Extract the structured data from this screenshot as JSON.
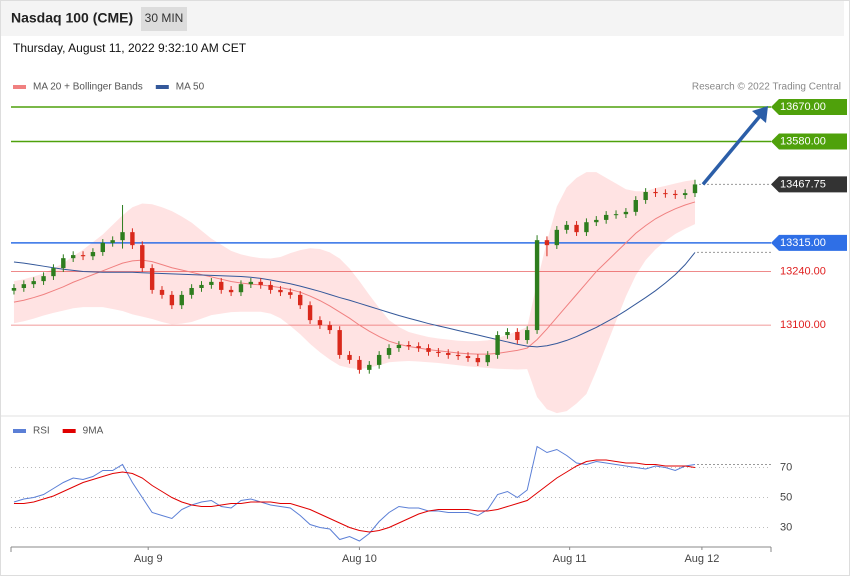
{
  "header": {
    "title": "Nasdaq 100 (CME)",
    "timeframe": "30 MIN",
    "date": "Thursday, August 11, 2022 9:32:10 AM CET",
    "credit": "Research © 2022 Trading Central"
  },
  "chart_data": [
    {
      "type": "candlestick",
      "up_color": "#2e7d1e",
      "down_color": "#d9291c",
      "xlim": [
        -0.3,
        76.7
      ],
      "ylim": [
        12865,
        13793
      ],
      "open": [
        13190,
        13197,
        13207,
        13215,
        13228,
        13249,
        13275,
        13283,
        13280,
        13291,
        13315,
        13322,
        13343,
        13309,
        13249,
        13192,
        13179,
        13152,
        13179,
        13197,
        13205,
        13213,
        13192,
        13186,
        13207,
        13213,
        13205,
        13192,
        13186,
        13179,
        13152,
        13113,
        13100,
        13087,
        13022,
        13009,
        12983,
        12996,
        13022,
        13040,
        13048,
        13045,
        13040,
        13030,
        13027,
        13022,
        13019,
        13014,
        13003,
        13022,
        13074,
        13082,
        13061,
        13087,
        13322,
        13309,
        13349,
        13362,
        13343,
        13369,
        13375,
        13388,
        13390,
        13396,
        13427,
        13448,
        13445,
        13443,
        13440,
        13445
      ],
      "high": [
        13207,
        13217,
        13225,
        13238,
        13259,
        13285,
        13293,
        13293,
        13301,
        13325,
        13332,
        13414,
        13353,
        13319,
        13259,
        13202,
        13189,
        13189,
        13207,
        13215,
        13223,
        13223,
        13202,
        13217,
        13223,
        13223,
        13215,
        13202,
        13196,
        13189,
        13162,
        13123,
        13110,
        13097,
        13032,
        13019,
        13006,
        13032,
        13050,
        13058,
        13058,
        13055,
        13050,
        13040,
        13037,
        13032,
        13029,
        13024,
        13032,
        13084,
        13092,
        13092,
        13097,
        13335,
        13332,
        13359,
        13372,
        13372,
        13379,
        13385,
        13398,
        13400,
        13406,
        13437,
        13458,
        13458,
        13455,
        13453,
        13455,
        13480
      ],
      "low": [
        13180,
        13187,
        13197,
        13205,
        13218,
        13239,
        13265,
        13270,
        13270,
        13281,
        13305,
        13300,
        13299,
        13239,
        13182,
        13169,
        13142,
        13142,
        13169,
        13187,
        13195,
        13182,
        13176,
        13176,
        13197,
        13195,
        13182,
        13176,
        13169,
        13142,
        13103,
        13090,
        13077,
        13012,
        12999,
        12973,
        12973,
        12986,
        13012,
        13030,
        13035,
        13030,
        13020,
        13017,
        13012,
        13009,
        13004,
        12993,
        12993,
        13012,
        13064,
        13051,
        13051,
        13077,
        13280,
        13299,
        13339,
        13333,
        13333,
        13359,
        13365,
        13378,
        13380,
        13386,
        13417,
        13435,
        13433,
        13430,
        13430,
        13435
      ],
      "close": [
        13197,
        13207,
        13215,
        13228,
        13249,
        13275,
        13283,
        13280,
        13291,
        13315,
        13322,
        13343,
        13309,
        13249,
        13192,
        13179,
        13152,
        13179,
        13197,
        13205,
        13213,
        13192,
        13186,
        13207,
        13213,
        13205,
        13192,
        13186,
        13179,
        13152,
        13113,
        13100,
        13087,
        13022,
        13009,
        12983,
        12996,
        13022,
        13040,
        13048,
        13045,
        13040,
        13030,
        13027,
        13022,
        13019,
        13014,
        13003,
        13022,
        13074,
        13082,
        13061,
        13087,
        13322,
        13309,
        13349,
        13362,
        13343,
        13369,
        13375,
        13388,
        13390,
        13396,
        13427,
        13448,
        13445,
        13443,
        13440,
        13445,
        13467.75
      ],
      "last_color": "#333333",
      "series": [
        {
          "name": "MA 20 + Bollinger Bands",
          "color": "#f08080",
          "band_color": "#ffdcdc",
          "values": [
            13160,
            13165,
            13172,
            13180,
            13190,
            13200,
            13212,
            13222,
            13232,
            13242,
            13252,
            13262,
            13268,
            13270,
            13266,
            13258,
            13250,
            13244,
            13238,
            13232,
            13226,
            13220,
            13214,
            13210,
            13207,
            13205,
            13202,
            13198,
            13193,
            13186,
            13176,
            13164,
            13150,
            13134,
            13118,
            13100,
            13084,
            13070,
            13058,
            13050,
            13044,
            13040,
            13036,
            13033,
            13030,
            13027,
            13025,
            13024,
            13024,
            13026,
            13030,
            13034,
            13040,
            13062,
            13090,
            13120,
            13150,
            13180,
            13210,
            13240,
            13265,
            13290,
            13315,
            13340,
            13360,
            13378,
            13392,
            13404,
            13414,
            13422
          ],
          "upper": [
            13215,
            13220,
            13227,
            13235,
            13248,
            13262,
            13280,
            13297,
            13317,
            13337,
            13362,
            13387,
            13408,
            13418,
            13416,
            13408,
            13398,
            13384,
            13368,
            13347,
            13326,
            13310,
            13294,
            13285,
            13279,
            13275,
            13274,
            13278,
            13288,
            13296,
            13301,
            13299,
            13290,
            13274,
            13248,
            13215,
            13179,
            13145,
            13113,
            13095,
            13082,
            13075,
            13069,
            13065,
            13062,
            13059,
            13058,
            13058,
            13060,
            13066,
            13075,
            13084,
            13095,
            13212,
            13320,
            13410,
            13460,
            13485,
            13500,
            13500,
            13485,
            13470,
            13455,
            13450,
            13450,
            13458,
            13464,
            13470,
            13476,
            13480
          ],
          "lower": [
            13105,
            13110,
            13117,
            13125,
            13132,
            13138,
            13144,
            13147,
            13147,
            13147,
            13142,
            13137,
            13128,
            13122,
            13116,
            13108,
            13102,
            13104,
            13108,
            13117,
            13126,
            13130,
            13134,
            13135,
            13135,
            13135,
            13130,
            13118,
            13098,
            13076,
            13051,
            13029,
            13010,
            12994,
            12988,
            12985,
            12989,
            12995,
            13003,
            13005,
            13006,
            13005,
            13003,
            13001,
            12998,
            12995,
            12992,
            12990,
            12988,
            12986,
            12985,
            12984,
            12985,
            12912,
            12880,
            12870,
            12875,
            12895,
            12920,
            12980,
            13045,
            13110,
            13175,
            13230,
            13270,
            13298,
            13320,
            13338,
            13352,
            13364
          ]
        },
        {
          "name": "MA 50",
          "color": "#34589a",
          "values": [
            13265,
            13262,
            13258,
            13254,
            13250,
            13246,
            13243,
            13240,
            13239,
            13238,
            13238,
            13238,
            13238,
            13237,
            13236,
            13235,
            13234,
            13233,
            13232,
            13231,
            13230,
            13229,
            13228,
            13227,
            13225,
            13222,
            13218,
            13213,
            13208,
            13202,
            13195,
            13188,
            13180,
            13172,
            13165,
            13157,
            13149,
            13141,
            13133,
            13125,
            13118,
            13111,
            13104,
            13098,
            13092,
            13086,
            13080,
            13074,
            13068,
            13062,
            13056,
            13050,
            13045,
            13043,
            13046,
            13052,
            13060,
            13070,
            13082,
            13094,
            13108,
            13122,
            13138,
            13155,
            13172,
            13190,
            13210,
            13232,
            13258,
            13290
          ]
        }
      ],
      "levels": [
        {
          "value": 13670.0,
          "label": "13670.00",
          "color": "#4fa10b",
          "boxed": true
        },
        {
          "value": 13580.0,
          "label": "13580.00",
          "color": "#4fa10b",
          "boxed": true
        },
        {
          "value": 13315.0,
          "label": "13315.00",
          "color": "#2f6fe6",
          "boxed": true
        },
        {
          "value": 13240.0,
          "label": "13240.00",
          "color": "#e02020",
          "boxed": false
        },
        {
          "value": 13100.0,
          "label": "13100.00",
          "color": "#e02020",
          "boxed": false
        }
      ]
    },
    {
      "type": "line",
      "xlim": [
        -0.3,
        76.7
      ],
      "ylim": [
        17,
        88
      ],
      "yticks": [
        30,
        50,
        70
      ],
      "grid": true,
      "xticks": [
        {
          "value": 13.6,
          "label": "Aug 9"
        },
        {
          "value": 35.0,
          "label": "Aug 10"
        },
        {
          "value": 56.3,
          "label": "Aug 11"
        },
        {
          "value": 69.7,
          "label": "Aug 12"
        }
      ],
      "series": [
        {
          "name": "RSI",
          "color": "#5b7fd6",
          "values": [
            47,
            49,
            50,
            52,
            56,
            60,
            63,
            62,
            64,
            68,
            68,
            72,
            60,
            50,
            40,
            38,
            36,
            42,
            45,
            47,
            48,
            44,
            43,
            48,
            49,
            47,
            45,
            44,
            43,
            38,
            32,
            30,
            29,
            22,
            24,
            21,
            26,
            34,
            40,
            44,
            43,
            43,
            41,
            41,
            40,
            40,
            40,
            38,
            42,
            52,
            54,
            50,
            55,
            84,
            80,
            82,
            78,
            73,
            72,
            74,
            73,
            72,
            71,
            70,
            69,
            71,
            70,
            68,
            71,
            72
          ]
        },
        {
          "name": "9MA",
          "color": "#e00000",
          "values": [
            46,
            46,
            47,
            49,
            51,
            54,
            57,
            60,
            62,
            64,
            66,
            67,
            66,
            63,
            58,
            54,
            50,
            47,
            45,
            44,
            44,
            45,
            46,
            46,
            47,
            47,
            47,
            46,
            46,
            44,
            42,
            39,
            36,
            33,
            30,
            28,
            27,
            28,
            30,
            33,
            36,
            39,
            41,
            42,
            42,
            42,
            42,
            41,
            41,
            42,
            44,
            46,
            48,
            53,
            58,
            63,
            67,
            71,
            74,
            75,
            75,
            74,
            73,
            73,
            72,
            72,
            71,
            71,
            71,
            70
          ]
        }
      ]
    }
  ]
}
